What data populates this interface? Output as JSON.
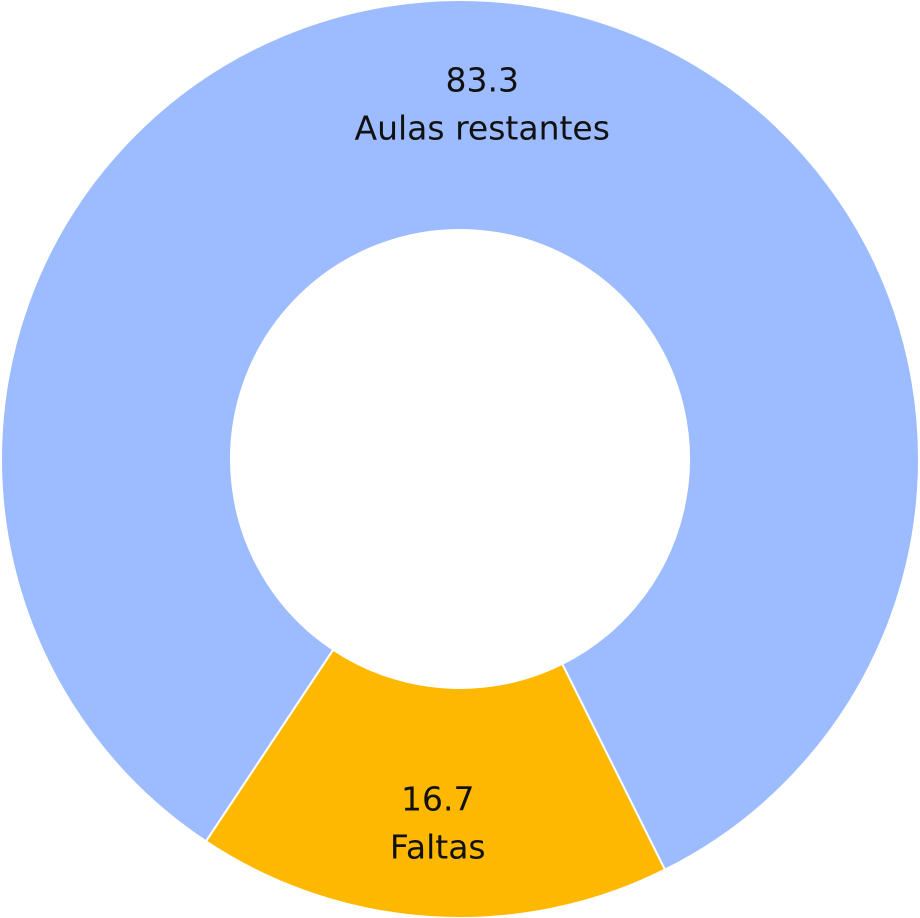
{
  "chart_data": {
    "type": "pie",
    "donut": true,
    "categories": [
      "Aulas restantes",
      "Faltas"
    ],
    "values": [
      83.3,
      16.7
    ],
    "value_labels": [
      "83.3",
      "16.7"
    ],
    "colors": [
      "#9dbbff",
      "#ffb800"
    ],
    "title": "",
    "legend": "none"
  }
}
